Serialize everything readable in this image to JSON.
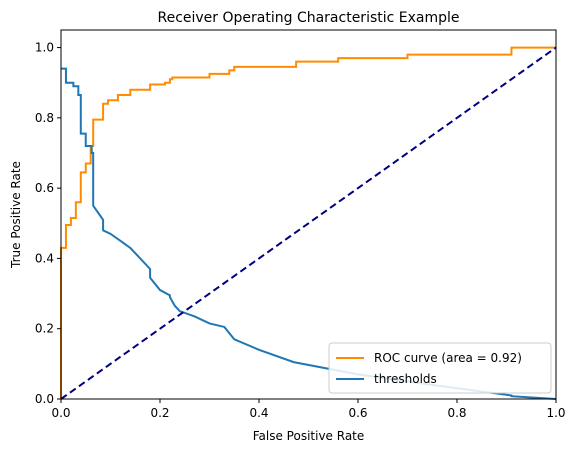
{
  "chart_data": {
    "type": "line",
    "title": "Receiver Operating Characteristic Example",
    "xlabel": "False Positive Rate",
    "ylabel": "True Positive Rate",
    "xlim": [
      0.0,
      1.0
    ],
    "ylim": [
      0.0,
      1.05
    ],
    "xticks": [
      "0.0",
      "0.2",
      "0.4",
      "0.6",
      "0.8",
      "1.0"
    ],
    "yticks": [
      "0.0",
      "0.2",
      "0.4",
      "0.6",
      "0.8",
      "1.0"
    ],
    "legend_position": "lower-right",
    "grid": false,
    "series": [
      {
        "name": "ROC curve (area = 0.92)",
        "color": "#ff8c00",
        "x": [
          0,
          0,
          0.01,
          0.01,
          0.02,
          0.02,
          0.03,
          0.03,
          0.04,
          0.04,
          0.05,
          0.05,
          0.06,
          0.06,
          0.065,
          0.065,
          0.085,
          0.085,
          0.095,
          0.095,
          0.115,
          0.115,
          0.14,
          0.14,
          0.18,
          0.18,
          0.21,
          0.21,
          0.22,
          0.22,
          0.225,
          0.225,
          0.3,
          0.3,
          0.34,
          0.34,
          0.35,
          0.35,
          0.475,
          0.475,
          0.56,
          0.56,
          0.7,
          0.7,
          0.91,
          0.91,
          1.0
        ],
        "y": [
          0,
          0.43,
          0.43,
          0.495,
          0.495,
          0.515,
          0.515,
          0.56,
          0.56,
          0.645,
          0.645,
          0.67,
          0.67,
          0.72,
          0.72,
          0.795,
          0.795,
          0.84,
          0.84,
          0.85,
          0.85,
          0.865,
          0.865,
          0.88,
          0.88,
          0.895,
          0.895,
          0.9,
          0.9,
          0.91,
          0.91,
          0.915,
          0.915,
          0.925,
          0.925,
          0.935,
          0.935,
          0.945,
          0.945,
          0.96,
          0.96,
          0.97,
          0.97,
          0.98,
          0.98,
          1.0,
          1.0
        ]
      },
      {
        "name": "thresholds",
        "color": "#1f77b4",
        "x": [
          0,
          0.01,
          0.01,
          0.025,
          0.025,
          0.035,
          0.035,
          0.04,
          0.04,
          0.05,
          0.05,
          0.058,
          0.062,
          0.062,
          0.065,
          0.065,
          0.08,
          0.085,
          0.085,
          0.1,
          0.12,
          0.14,
          0.18,
          0.18,
          0.2,
          0.22,
          0.22,
          0.23,
          0.24,
          0.27,
          0.3,
          0.33,
          0.35,
          0.4,
          0.47,
          0.6,
          0.75,
          0.91,
          0.91,
          1.0
        ],
        "y": [
          0.94,
          0.94,
          0.9,
          0.9,
          0.89,
          0.89,
          0.865,
          0.865,
          0.755,
          0.755,
          0.72,
          0.72,
          0.72,
          0.7,
          0.7,
          0.55,
          0.52,
          0.51,
          0.48,
          0.47,
          0.45,
          0.43,
          0.37,
          0.345,
          0.31,
          0.295,
          0.29,
          0.265,
          0.25,
          0.235,
          0.215,
          0.205,
          0.17,
          0.14,
          0.105,
          0.07,
          0.04,
          0.01,
          0.008,
          0.0
        ]
      },
      {
        "name": "",
        "color": "#000080",
        "dashed": true,
        "x": [
          0,
          1
        ],
        "y": [
          0,
          1
        ]
      }
    ]
  }
}
